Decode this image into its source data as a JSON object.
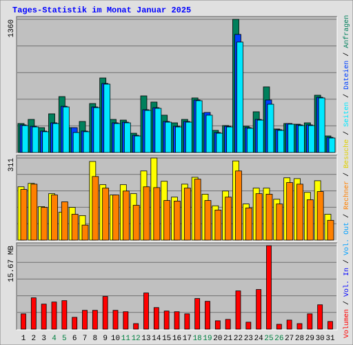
{
  "title": "Tages-Statistik im Monat Januar 2025",
  "categories": [
    "1",
    "2",
    "3",
    "4",
    "5",
    "6",
    "7",
    "8",
    "9",
    "10",
    "11",
    "12",
    "13",
    "14",
    "15",
    "16",
    "17",
    "18",
    "19",
    "20",
    "21",
    "22",
    "23",
    "24",
    "25",
    "26",
    "27",
    "28",
    "29",
    "30",
    "31"
  ],
  "highlight_categories": [
    3,
    4,
    10,
    11,
    17,
    18,
    24,
    25
  ],
  "highlight_color": "#008040",
  "chart_data": [
    {
      "type": "bar",
      "ylim": [
        0,
        1360
      ],
      "yticks": [
        {
          "value": 272,
          "label": null
        },
        {
          "value": 544,
          "label": null
        },
        {
          "value": 816,
          "label": null
        },
        {
          "value": 1088,
          "label": null
        },
        1360
      ],
      "series": [
        {
          "name": "Anfragen",
          "color": "#00805c",
          "values": [
            296,
            338,
            254,
            395,
            571,
            254,
            317,
            500,
            761,
            338,
            331,
            197,
            578,
            515,
            381,
            303,
            338,
            557,
            402,
            226,
            275,
            1360,
            268,
            416,
            670,
            240,
            296,
            289,
            303,
            585,
            169
          ]
        },
        {
          "name": "Dateien",
          "color": "#0040ff",
          "values": [
            282,
            268,
            219,
            303,
            472,
            254,
            219,
            465,
            705,
            303,
            310,
            176,
            437,
            458,
            317,
            268,
            317,
            536,
            409,
            204,
            268,
            1206,
            254,
            338,
            536,
            233,
            296,
            282,
            282,
            564,
            155
          ]
        },
        {
          "name": "Seiten",
          "color": "#00e8ff",
          "values": [
            275,
            261,
            212,
            296,
            465,
            204,
            212,
            458,
            698,
            296,
            303,
            169,
            430,
            451,
            310,
            261,
            310,
            529,
            381,
            197,
            261,
            1128,
            247,
            331,
            493,
            226,
            289,
            275,
            275,
            557,
            148
          ]
        }
      ]
    },
    {
      "type": "bar",
      "ylim": [
        0,
        311
      ],
      "yticks": [
        {
          "value": 62.2,
          "label": null
        },
        {
          "value": 124.4,
          "label": null
        },
        {
          "value": 186.6,
          "label": null
        },
        {
          "value": 248.8,
          "label": null
        },
        311
      ],
      "series": [
        {
          "name": "Besuche",
          "color": "#ffff00",
          "values": [
            202,
            215,
            127,
            176,
            106,
            124,
            93,
            298,
            210,
            171,
            210,
            176,
            262,
            311,
            223,
            163,
            212,
            238,
            174,
            130,
            186,
            300,
            137,
            197,
            197,
            155,
            236,
            233,
            181,
            225,
            98
          ]
        },
        {
          "name": "Rechner",
          "color": "#ff8000",
          "values": [
            192,
            212,
            124,
            171,
            145,
            98,
            57,
            241,
            197,
            171,
            186,
            132,
            202,
            199,
            150,
            148,
            197,
            231,
            150,
            114,
            163,
            262,
            122,
            176,
            174,
            137,
            218,
            212,
            153,
            184,
            75
          ]
        }
      ]
    },
    {
      "type": "bar",
      "ylim": [
        0,
        15.67
      ],
      "yticks": [
        {
          "value": 3.134,
          "label": null
        },
        {
          "value": 6.268,
          "label": null
        },
        {
          "value": 9.402,
          "label": null
        },
        {
          "value": 12.536,
          "label": null
        },
        {
          "value": 15.67,
          "label": "15.67 MB"
        }
      ],
      "series": [
        {
          "name": "Volumen",
          "color": "#ff0000",
          "values": [
            2.87,
            5.88,
            4.7,
            5.09,
            5.35,
            2.22,
            3.53,
            3.53,
            6.14,
            3.53,
            3.27,
            1.04,
            6.79,
            4.05,
            3.4,
            3.27,
            2.87,
            5.75,
            5.22,
            1.57,
            1.83,
            7.18,
            1.31,
            7.44,
            15.67,
            0.91,
            1.7,
            1.04,
            2.87,
            4.57,
            1.44
          ]
        }
      ],
      "legend_only": [
        {
          "name": "Vol. In",
          "color": "#0000ff"
        },
        {
          "name": "Vol. Out",
          "color": "#00a0ff"
        }
      ]
    }
  ]
}
